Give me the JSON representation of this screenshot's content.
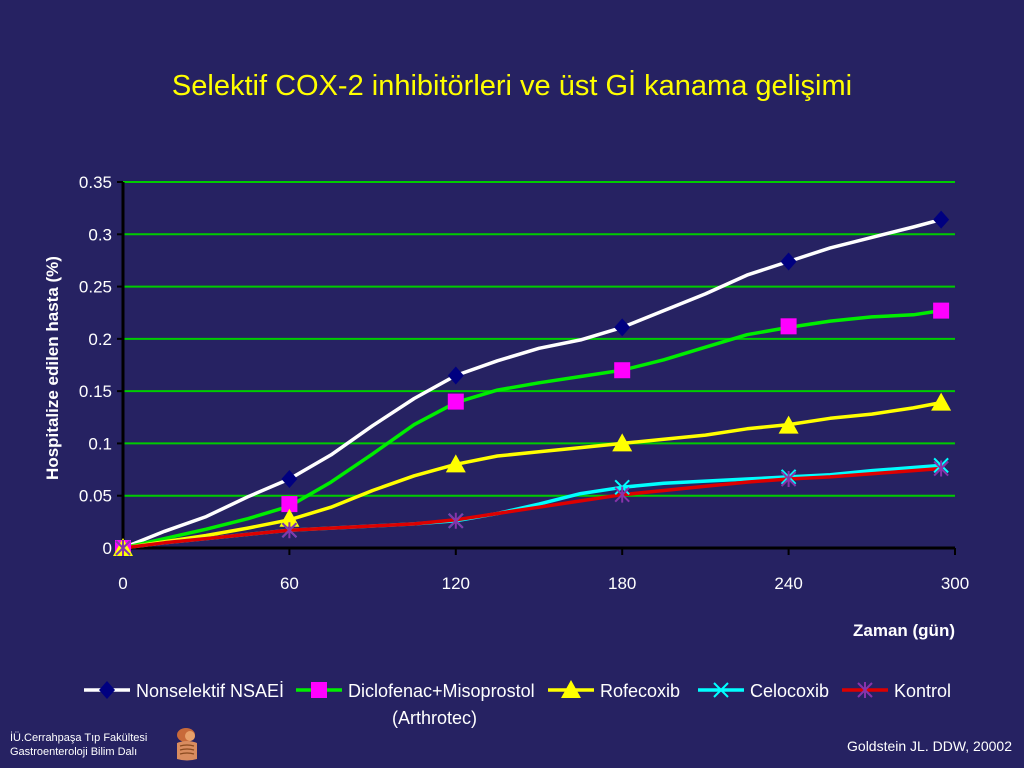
{
  "slide": {
    "title": "Selektif COX-2 inhibitörleri ve üst Gİ kanama gelişimi",
    "footer_left_line1": "İÜ.Cerrahpaşa Tıp Fakültesi",
    "footer_left_line2": "Gastroenteroloji Bilim Dalı",
    "footer_right": "Goldstein JL. DDW, 20002",
    "legend_subnote": "(Arthrotec)"
  },
  "chart_data": {
    "type": "line",
    "title": "",
    "xlabel": "Zaman (gün)",
    "ylabel": "Hospitalize edilen hasta (%)",
    "xlim": [
      0,
      300
    ],
    "ylim": [
      0,
      0.35
    ],
    "x_ticks": [
      0,
      60,
      120,
      180,
      240,
      300
    ],
    "x_tick_labels": [
      "0",
      "60",
      "120",
      "180",
      "240",
      "300"
    ],
    "y_ticks": [
      0,
      0.05,
      0.1,
      0.15,
      0.2,
      0.25,
      0.3,
      0.35
    ],
    "y_tick_labels": [
      "0",
      "0.05",
      "0.1",
      "0.15",
      "0.2",
      "0.25",
      "0.3",
      "0.35"
    ],
    "grid": true,
    "grid_color": "#00cc00",
    "legend_position": "bottom",
    "series": [
      {
        "name": "Nonselektif NSAEİ",
        "color": "#ffffff",
        "marker": "diamond",
        "marker_color": "#000080",
        "x": [
          0,
          15,
          30,
          45,
          60,
          75,
          90,
          105,
          120,
          135,
          150,
          165,
          180,
          195,
          210,
          225,
          240,
          255,
          270,
          285,
          295
        ],
        "y": [
          0,
          0.016,
          0.03,
          0.049,
          0.066,
          0.089,
          0.117,
          0.143,
          0.165,
          0.179,
          0.191,
          0.199,
          0.211,
          0.227,
          0.243,
          0.261,
          0.274,
          0.287,
          0.297,
          0.307,
          0.314
        ],
        "marker_x": [
          0,
          60,
          120,
          180,
          240,
          295
        ],
        "marker_y": [
          0,
          0.066,
          0.165,
          0.211,
          0.274,
          0.314
        ]
      },
      {
        "name": "Diclofenac+Misoprostol",
        "color": "#00ee00",
        "marker": "square",
        "marker_color": "#ff00ff",
        "x": [
          0,
          15,
          30,
          45,
          60,
          75,
          90,
          105,
          120,
          135,
          150,
          165,
          180,
          195,
          210,
          225,
          240,
          255,
          270,
          285,
          295
        ],
        "y": [
          0,
          0.009,
          0.018,
          0.028,
          0.04,
          0.063,
          0.09,
          0.118,
          0.139,
          0.151,
          0.158,
          0.164,
          0.17,
          0.18,
          0.192,
          0.204,
          0.211,
          0.217,
          0.221,
          0.223,
          0.227
        ],
        "marker_x": [
          0,
          60,
          120,
          180,
          240,
          295
        ],
        "marker_y": [
          0,
          0.042,
          0.14,
          0.17,
          0.212,
          0.227
        ]
      },
      {
        "name": "Rofecoxib",
        "color": "#ffff00",
        "marker": "triangle",
        "marker_color": "#ffff00",
        "x": [
          0,
          15,
          30,
          45,
          60,
          75,
          90,
          105,
          120,
          135,
          150,
          165,
          180,
          195,
          210,
          225,
          240,
          255,
          270,
          285,
          295
        ],
        "y": [
          0,
          0.006,
          0.012,
          0.019,
          0.027,
          0.039,
          0.055,
          0.069,
          0.08,
          0.088,
          0.092,
          0.096,
          0.1,
          0.104,
          0.108,
          0.114,
          0.118,
          0.124,
          0.128,
          0.134,
          0.139
        ],
        "marker_x": [
          0,
          60,
          120,
          180,
          240,
          295
        ],
        "marker_y": [
          0,
          0.028,
          0.08,
          0.1,
          0.117,
          0.139
        ]
      },
      {
        "name": "Celocoxib",
        "color": "#00ffff",
        "marker": "x",
        "marker_color": "#00ffff",
        "x": [
          0,
          15,
          30,
          45,
          60,
          75,
          90,
          105,
          120,
          135,
          150,
          165,
          180,
          195,
          210,
          225,
          240,
          255,
          270,
          285,
          295
        ],
        "y": [
          0,
          0.005,
          0.009,
          0.013,
          0.017,
          0.019,
          0.021,
          0.023,
          0.026,
          0.033,
          0.042,
          0.052,
          0.058,
          0.062,
          0.064,
          0.066,
          0.068,
          0.07,
          0.074,
          0.077,
          0.079
        ],
        "marker_x": [
          0,
          60,
          120,
          180,
          240,
          295
        ],
        "marker_y": [
          0,
          0.017,
          0.026,
          0.058,
          0.068,
          0.079
        ]
      },
      {
        "name": "Kontrol",
        "color": "#dd0000",
        "marker": "asterisk",
        "marker_color": "#8833aa",
        "x": [
          0,
          15,
          30,
          45,
          60,
          75,
          90,
          105,
          120,
          135,
          150,
          165,
          180,
          195,
          210,
          225,
          240,
          255,
          270,
          285,
          295
        ],
        "y": [
          0,
          0.005,
          0.009,
          0.013,
          0.017,
          0.019,
          0.021,
          0.023,
          0.027,
          0.033,
          0.039,
          0.045,
          0.051,
          0.055,
          0.059,
          0.063,
          0.066,
          0.068,
          0.071,
          0.074,
          0.076
        ],
        "marker_x": [
          0,
          60,
          120,
          180,
          240,
          295
        ],
        "marker_y": [
          0,
          0.017,
          0.026,
          0.051,
          0.066,
          0.076
        ]
      }
    ]
  }
}
